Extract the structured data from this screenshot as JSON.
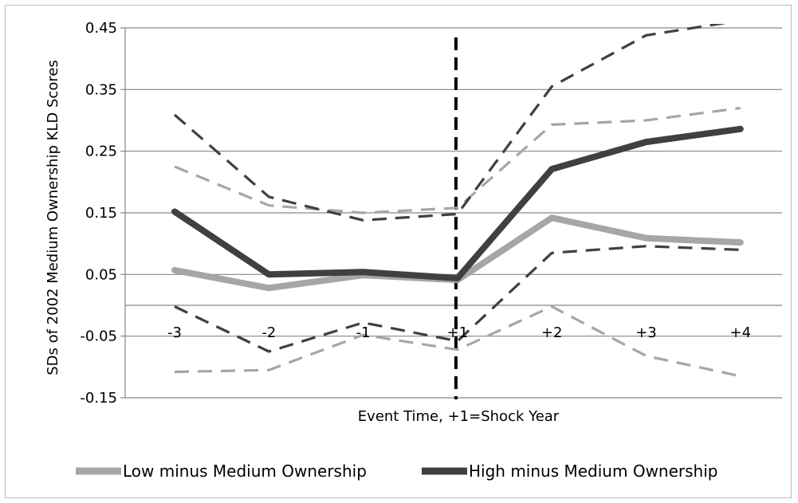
{
  "chart_data": {
    "type": "line",
    "title": "",
    "xlabel": "Event Time, +1=Shock Year",
    "ylabel": "SDs of 2002 Medium Ownership KLD Scores",
    "categories": [
      "-3",
      "-2",
      "-1",
      "+1",
      "+2",
      "+3",
      "+4"
    ],
    "y_ticks": [
      "0.45",
      "0.35",
      "0.25",
      "0.15",
      "0.05",
      "-0.05",
      "-0.15"
    ],
    "ylim": [
      -0.15,
      0.45
    ],
    "grid": true,
    "legend_position": "bottom",
    "shock_marker_category": "+1",
    "series": [
      {
        "name": "Low minus Medium Ownership",
        "color": "#a6a6a6",
        "values": [
          0.057,
          0.028,
          0.049,
          0.041,
          0.142,
          0.109,
          0.102
        ],
        "ci_upper": [
          0.225,
          0.162,
          0.15,
          0.158,
          0.293,
          0.3,
          0.32
        ],
        "ci_lower": [
          -0.108,
          -0.105,
          -0.048,
          -0.072,
          -0.002,
          -0.082,
          -0.115
        ]
      },
      {
        "name": "High minus Medium Ownership",
        "color": "#404040",
        "values": [
          0.152,
          0.05,
          0.054,
          0.044,
          0.221,
          0.265,
          0.286
        ],
        "ci_upper": [
          0.309,
          0.176,
          0.138,
          0.148,
          0.355,
          0.438,
          0.462
        ],
        "ci_lower": [
          -0.002,
          -0.075,
          -0.028,
          -0.058,
          0.085,
          0.096,
          0.09
        ]
      }
    ]
  }
}
